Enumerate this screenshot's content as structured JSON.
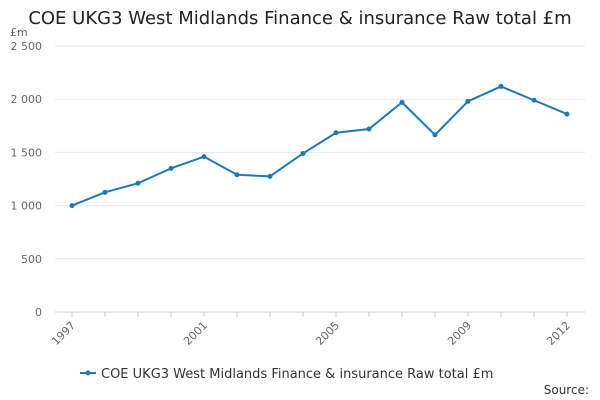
{
  "chart_data": {
    "type": "line",
    "title": "COE UKG3 West Midlands Finance & insurance Raw total £m",
    "ylabel": "£m",
    "xlabel": "",
    "ylim": [
      0,
      2500
    ],
    "yticks": [
      0,
      500,
      1000,
      1500,
      2000,
      2500
    ],
    "ytick_labels": [
      "0",
      "500",
      "1 000",
      "1 500",
      "2 000",
      "2 500"
    ],
    "x": [
      1997,
      1998,
      1999,
      2000,
      2001,
      2002,
      2003,
      2004,
      2005,
      2006,
      2007,
      2008,
      2009,
      2010,
      2011,
      2012
    ],
    "xtick_labels": [
      "1997",
      "2001",
      "2005",
      "2009",
      "2012"
    ],
    "grid": true,
    "legend_position": "bottom",
    "series": [
      {
        "name": "COE UKG3 West Midlands Finance & insurance Raw total £m",
        "color": "#1f77b4",
        "values": [
          1000,
          1125,
          1210,
          1350,
          1460,
          1290,
          1275,
          1490,
          1685,
          1720,
          1970,
          1665,
          1980,
          2120,
          1990,
          1860
        ]
      }
    ],
    "source": "Source:"
  }
}
